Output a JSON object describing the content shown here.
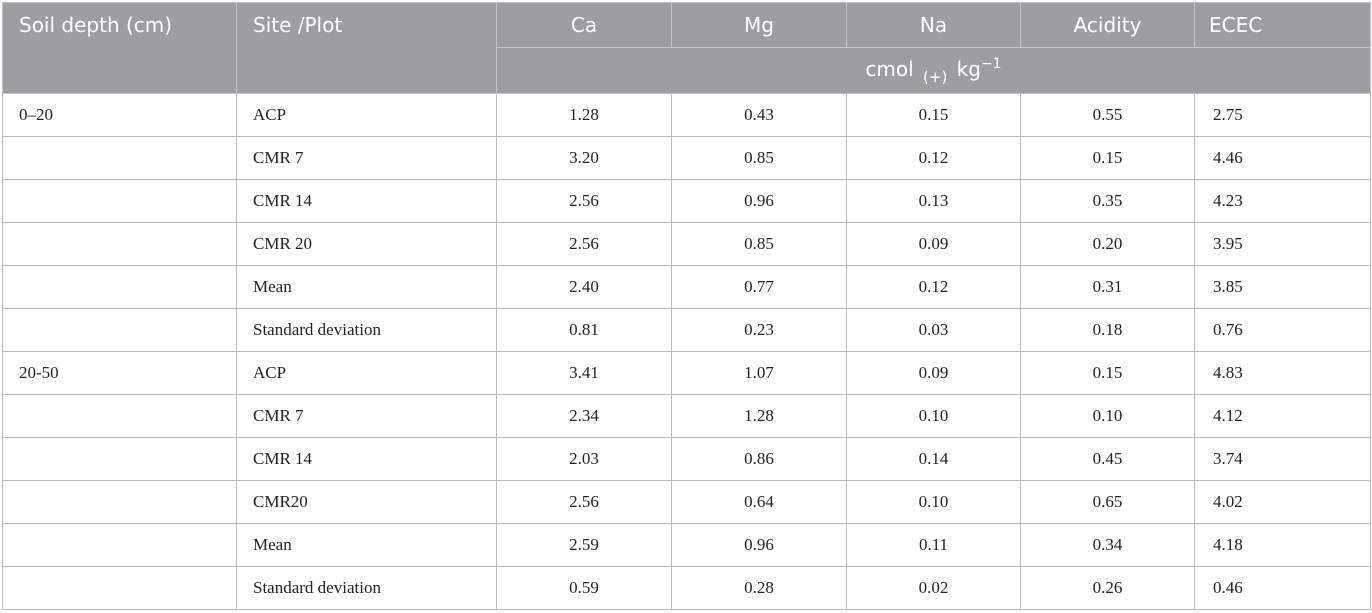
{
  "table": {
    "headers": {
      "soil_depth": "Soil depth (cm)",
      "site_plot": "Site /Plot",
      "ca": "Ca",
      "mg": "Mg",
      "na": "Na",
      "acidity": "Acidity",
      "ecec": "ECEC"
    },
    "unit": {
      "base": "cmol",
      "subscript": "(+)",
      "kg": "kg",
      "exponent": "−1"
    },
    "rows": [
      {
        "depth": "0–20",
        "site": "ACP",
        "ca": "1.28",
        "mg": "0.43",
        "na": "0.15",
        "acidity": "0.55",
        "ecec": "2.75"
      },
      {
        "depth": "",
        "site": "CMR 7",
        "ca": "3.20",
        "mg": "0.85",
        "na": "0.12",
        "acidity": "0.15",
        "ecec": "4.46"
      },
      {
        "depth": "",
        "site": "CMR 14",
        "ca": "2.56",
        "mg": "0.96",
        "na": "0.13",
        "acidity": "0.35",
        "ecec": "4.23"
      },
      {
        "depth": "",
        "site": "CMR 20",
        "ca": "2.56",
        "mg": "0.85",
        "na": "0.09",
        "acidity": "0.20",
        "ecec": "3.95"
      },
      {
        "depth": "",
        "site": "Mean",
        "ca": "2.40",
        "mg": "0.77",
        "na": "0.12",
        "acidity": "0.31",
        "ecec": "3.85"
      },
      {
        "depth": "",
        "site": "Standard deviation",
        "ca": "0.81",
        "mg": "0.23",
        "na": "0.03",
        "acidity": "0.18",
        "ecec": "0.76"
      },
      {
        "depth": "20-50",
        "site": "ACP",
        "ca": "3.41",
        "mg": "1.07",
        "na": "0.09",
        "acidity": "0.15",
        "ecec": "4.83"
      },
      {
        "depth": "",
        "site": "CMR 7",
        "ca": "2.34",
        "mg": "1.28",
        "na": "0.10",
        "acidity": "0.10",
        "ecec": "4.12"
      },
      {
        "depth": "",
        "site": "CMR 14",
        "ca": "2.03",
        "mg": "0.86",
        "na": "0.14",
        "acidity": "0.45",
        "ecec": "3.74"
      },
      {
        "depth": "",
        "site": "CMR20",
        "ca": "2.56",
        "mg": "0.64",
        "na": "0.10",
        "acidity": "0.65",
        "ecec": "4.02"
      },
      {
        "depth": "",
        "site": "Mean",
        "ca": "2.59",
        "mg": "0.96",
        "na": "0.11",
        "acidity": "0.34",
        "ecec": "4.18"
      },
      {
        "depth": "",
        "site": "Standard deviation",
        "ca": "0.59",
        "mg": "0.28",
        "na": "0.02",
        "acidity": "0.26",
        "ecec": "0.46"
      }
    ]
  }
}
